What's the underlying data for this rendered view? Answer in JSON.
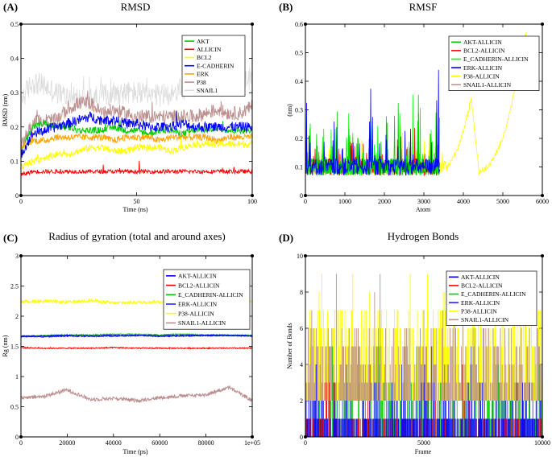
{
  "chart_data": [
    {
      "id": "A",
      "tag": "(A)",
      "type": "line",
      "title": "RMSD",
      "xlabel": "Time (ns)",
      "ylabel": "RMSD (nm)",
      "xlim": [
        0,
        100
      ],
      "ylim": [
        0,
        0.5
      ],
      "xticks": [
        "0",
        "50",
        "100"
      ],
      "yticks": [
        "0",
        "0.1",
        "0.2",
        "0.3",
        "0.4",
        "0.5"
      ],
      "legend": "top-right",
      "series": [
        {
          "name": "AKT",
          "color": "#00cc00",
          "values": [
            0.13,
            0.2,
            0.21,
            0.2,
            0.2,
            0.19,
            0.19,
            0.19,
            0.2,
            0.19,
            0.19,
            0.18,
            0.19,
            0.19,
            0.18,
            0.19,
            0.19,
            0.2,
            0.19,
            0.19,
            0.19
          ]
        },
        {
          "name": "ALLICIN",
          "color": "#ff0000",
          "values": [
            0.06,
            0.07,
            0.07,
            0.07,
            0.07,
            0.07,
            0.07,
            0.07,
            0.07,
            0.07,
            0.07,
            0.07,
            0.07,
            0.07,
            0.07,
            0.07,
            0.07,
            0.07,
            0.07,
            0.07,
            0.07
          ]
        },
        {
          "name": "BCL2",
          "color": "#ffff00",
          "values": [
            0.08,
            0.1,
            0.11,
            0.12,
            0.12,
            0.13,
            0.14,
            0.14,
            0.13,
            0.13,
            0.14,
            0.14,
            0.14,
            0.13,
            0.14,
            0.15,
            0.15,
            0.15,
            0.15,
            0.15,
            0.15
          ]
        },
        {
          "name": "E-CADHERIN",
          "color": "#0000ff",
          "values": [
            0.12,
            0.18,
            0.19,
            0.2,
            0.21,
            0.22,
            0.23,
            0.22,
            0.22,
            0.21,
            0.21,
            0.2,
            0.2,
            0.2,
            0.21,
            0.2,
            0.2,
            0.2,
            0.2,
            0.2,
            0.2
          ]
        },
        {
          "name": "ERK",
          "color": "#ffa500",
          "values": [
            0.14,
            0.16,
            0.16,
            0.17,
            0.17,
            0.17,
            0.17,
            0.17,
            0.16,
            0.17,
            0.17,
            0.17,
            0.16,
            0.17,
            0.17,
            0.17,
            0.17,
            0.16,
            0.17,
            0.17,
            0.17
          ]
        },
        {
          "name": "P38",
          "color": "#bc8f8f",
          "values": [
            0.15,
            0.21,
            0.22,
            0.22,
            0.25,
            0.27,
            0.27,
            0.24,
            0.25,
            0.24,
            0.23,
            0.23,
            0.23,
            0.23,
            0.23,
            0.23,
            0.24,
            0.25,
            0.24,
            0.24,
            0.26
          ]
        },
        {
          "name": "SNAIL1",
          "color": "#dcdcdc",
          "values": [
            0.28,
            0.33,
            0.32,
            0.3,
            0.29,
            0.28,
            0.28,
            0.29,
            0.3,
            0.3,
            0.3,
            0.29,
            0.29,
            0.3,
            0.31,
            0.32,
            0.33,
            0.32,
            0.33,
            0.34,
            0.33
          ]
        }
      ]
    },
    {
      "id": "B",
      "tag": "(B)",
      "type": "line",
      "title": "RMSF",
      "xlabel": "Atom",
      "ylabel": "(nm)",
      "xlim": [
        0,
        6000
      ],
      "ylim": [
        0,
        0.6
      ],
      "xticks": [
        "0",
        "1000",
        "2000",
        "3000",
        "4000",
        "5000",
        "6000"
      ],
      "yticks": [
        "0",
        "0.1",
        "0.2",
        "0.3",
        "0.4",
        "0.5",
        "0.6"
      ],
      "legend": "top-right",
      "series": [
        {
          "name": "AKT-ALLICIN",
          "color": "#00cc00",
          "x": [
            0,
            200,
            400,
            600,
            800,
            1000,
            1200,
            1400,
            1600,
            1800,
            2000,
            2200,
            2400,
            2600,
            2800,
            3000,
            3200,
            3400
          ],
          "values": [
            0.3,
            0.12,
            0.28,
            0.1,
            0.35,
            0.12,
            0.25,
            0.15,
            0.45,
            0.1,
            0.3,
            0.14,
            0.4,
            0.1,
            0.56,
            0.12,
            0.2,
            0.45
          ]
        },
        {
          "name": "BCL2-ALLICIN",
          "color": "#ff0000",
          "x": [
            0,
            200,
            400,
            600,
            800,
            1000,
            1200,
            1400,
            1600,
            1800,
            2000,
            2200,
            2400,
            2600,
            2800,
            3000,
            3200,
            3400
          ],
          "values": [
            0.2,
            0.1,
            0.15,
            0.08,
            0.12,
            0.1,
            0.14,
            0.09,
            0.18,
            0.1,
            0.12,
            0.09,
            0.15,
            0.1,
            0.2,
            0.09,
            0.1,
            0.15
          ]
        },
        {
          "name": "E_CADHERIN-ALLICIN",
          "color": "#00ff00",
          "x": [
            0,
            200,
            400,
            600,
            800,
            1000,
            1200,
            1400,
            1600,
            1800,
            2000,
            2200,
            2400,
            2600,
            2800,
            3000,
            3200,
            3400
          ],
          "values": [
            0.35,
            0.1,
            0.3,
            0.12,
            0.28,
            0.1,
            0.35,
            0.12,
            0.3,
            0.15,
            0.38,
            0.1,
            0.33,
            0.12,
            0.5,
            0.1,
            0.25,
            0.3
          ]
        },
        {
          "name": "ERK-ALLICIN",
          "color": "#0000ff",
          "x": [
            0,
            200,
            400,
            600,
            800,
            1000,
            1200,
            1400,
            1600,
            1800,
            2000,
            2200,
            2400,
            2600,
            2800,
            3000,
            3200,
            3400
          ],
          "values": [
            0.38,
            0.1,
            0.22,
            0.07,
            0.3,
            0.09,
            0.25,
            0.12,
            0.56,
            0.1,
            0.28,
            0.1,
            0.3,
            0.09,
            0.45,
            0.08,
            0.2,
            0.49
          ]
        },
        {
          "name": "P38-ALLICIN",
          "color": "#ffff00",
          "x": [
            0,
            400,
            800,
            1200,
            1600,
            2000,
            2400,
            2800,
            3200,
            3600,
            3800,
            4000,
            4200,
            4400,
            4600,
            4800,
            5000,
            5200,
            5400,
            5600
          ],
          "values": [
            0.22,
            0.1,
            0.15,
            0.1,
            0.18,
            0.1,
            0.2,
            0.12,
            0.2,
            0.1,
            0.15,
            0.22,
            0.34,
            0.08,
            0.1,
            0.14,
            0.2,
            0.3,
            0.45,
            0.58
          ]
        },
        {
          "name": "SNAIL1-ALLICIN",
          "color": "#bc8f8f",
          "x": [
            0,
            300,
            600,
            900,
            1200,
            1500,
            1800,
            2100,
            2400,
            2700,
            3000,
            3300
          ],
          "values": [
            0.12,
            0.08,
            0.1,
            0.07,
            0.12,
            0.08,
            0.1,
            0.08,
            0.11,
            0.08,
            0.1,
            0.12
          ]
        }
      ]
    },
    {
      "id": "C",
      "tag": "(C)",
      "type": "line",
      "title": "Radius of gyration (total and around axes)",
      "xlabel": "Time (ps)",
      "ylabel": "Rg (nm)",
      "xlim": [
        0,
        100000
      ],
      "ylim": [
        0,
        3
      ],
      "xticks": [
        "0",
        "20000",
        "40000",
        "60000",
        "80000",
        "1e+05"
      ],
      "yticks": [
        "0",
        "0.5",
        "1",
        "1.5",
        "2",
        "2.5",
        "3"
      ],
      "legend": "top-right",
      "series": [
        {
          "name": "AKT-ALLICIN",
          "color": "#0000ff",
          "values": [
            1.67,
            1.67,
            1.68,
            1.67,
            1.68,
            1.68,
            1.67,
            1.68,
            1.68,
            1.68,
            1.67
          ]
        },
        {
          "name": "BCL2-ALLICIN",
          "color": "#ff0000",
          "values": [
            1.48,
            1.47,
            1.47,
            1.47,
            1.48,
            1.47,
            1.47,
            1.47,
            1.47,
            1.47,
            1.47
          ]
        },
        {
          "name": "E_CADHERIN-ALLICIN",
          "color": "#00cc00",
          "values": [
            1.66,
            1.68,
            1.69,
            1.69,
            1.7,
            1.7,
            1.69,
            1.7,
            1.69,
            1.69,
            1.68
          ]
        },
        {
          "name": "ERK-ALLICIN",
          "color": "#2020ff",
          "values": [
            1.67,
            1.66,
            1.67,
            1.67,
            1.67,
            1.68,
            1.67,
            1.67,
            1.68,
            1.68,
            1.68
          ]
        },
        {
          "name": "P38-ALLICIN",
          "color": "#ffff00",
          "values": [
            2.24,
            2.25,
            2.23,
            2.26,
            2.22,
            2.23,
            2.24,
            2.25,
            2.27,
            2.25,
            2.24
          ]
        },
        {
          "name": "SNAIL1-ALLICIN",
          "color": "#bc8f8f",
          "values": [
            0.64,
            0.67,
            0.78,
            0.62,
            0.64,
            0.6,
            0.65,
            0.68,
            0.7,
            0.82,
            0.6
          ]
        }
      ]
    },
    {
      "id": "D",
      "tag": "(D)",
      "type": "line",
      "title": "Hydrogen Bonds",
      "xlabel": "Frame",
      "ylabel": "Number of Bonds",
      "xlim": [
        0,
        10000
      ],
      "ylim": [
        0,
        10
      ],
      "xticks": [
        "0",
        "5000",
        "10000"
      ],
      "yticks": [
        "0",
        "2",
        "4",
        "6",
        "8",
        "10"
      ],
      "legend": "top-right",
      "series": [
        {
          "name": "AKT-ALLICIN",
          "color": "#0000ff",
          "typical": [
            0,
            1
          ],
          "values": [
            1,
            0,
            1,
            1,
            0,
            1,
            0,
            1,
            1,
            0,
            1
          ]
        },
        {
          "name": "BCL2-ALLICIN",
          "color": "#ff0000",
          "typical": [
            0,
            1
          ],
          "values": [
            0,
            1,
            0,
            0,
            1,
            0,
            0,
            1,
            0,
            0,
            1
          ]
        },
        {
          "name": "E_CADHERIN-ALLICIN",
          "color": "#00cc00",
          "typical": [
            0,
            2
          ],
          "values": [
            1,
            2,
            1,
            2,
            2,
            1,
            2,
            1,
            2,
            1,
            2
          ]
        },
        {
          "name": "ERK-ALLICIN",
          "color": "#2020ff",
          "typical": [
            0,
            2
          ],
          "values": [
            1,
            1,
            2,
            1,
            1,
            2,
            1,
            1,
            2,
            1,
            1
          ]
        },
        {
          "name": "P38-ALLICIN",
          "color": "#ffff00",
          "typical": [
            2,
            7
          ],
          "values": [
            5,
            6,
            7,
            5,
            8,
            6,
            7,
            5,
            9,
            6,
            7
          ]
        },
        {
          "name": "SNAIL1-ALLICIN",
          "color": "#bc8f8f",
          "typical": [
            2,
            6
          ],
          "values": [
            4,
            3,
            5,
            4,
            3,
            5,
            4,
            3,
            4,
            5,
            3
          ]
        }
      ]
    }
  ]
}
